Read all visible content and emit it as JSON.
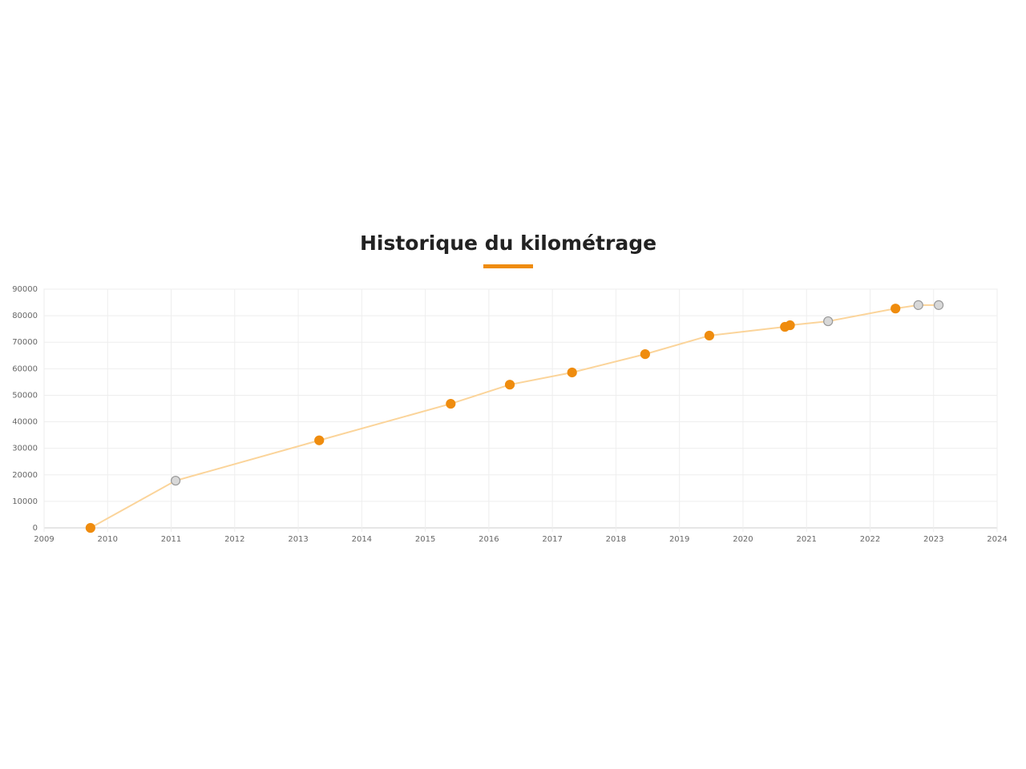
{
  "chart_data": {
    "type": "line",
    "title": "Historique du kilométrage",
    "x": [
      2009.73,
      2011.07,
      2013.33,
      2015.4,
      2016.33,
      2017.31,
      2018.46,
      2019.47,
      2020.66,
      2020.74,
      2021.34,
      2022.4,
      2022.76,
      2023.08
    ],
    "series": [
      {
        "color": "#fbd49a",
        "values": [
          0,
          17800,
          33000,
          46800,
          54000,
          58600,
          65500,
          72500,
          75800,
          76400,
          77900,
          82700,
          84000,
          84000
        ],
        "point_colors": [
          "#ef8c0e",
          "#d8d8d8",
          "#ef8c0e",
          "#ef8c0e",
          "#ef8c0e",
          "#ef8c0e",
          "#ef8c0e",
          "#ef8c0e",
          "#ef8c0e",
          "#ef8c0e",
          "#d8d8d8",
          "#ef8c0e",
          "#d8d8d8",
          "#d8d8d8"
        ]
      }
    ],
    "xlim": [
      2009,
      2024
    ],
    "xticks": [
      2009,
      2010,
      2011,
      2012,
      2013,
      2014,
      2015,
      2016,
      2017,
      2018,
      2019,
      2020,
      2021,
      2022,
      2023,
      2024
    ],
    "ylim": [
      0,
      90000
    ],
    "yticks": [
      0,
      10000,
      20000,
      30000,
      40000,
      50000,
      60000,
      70000,
      80000,
      90000
    ],
    "grid": true
  }
}
